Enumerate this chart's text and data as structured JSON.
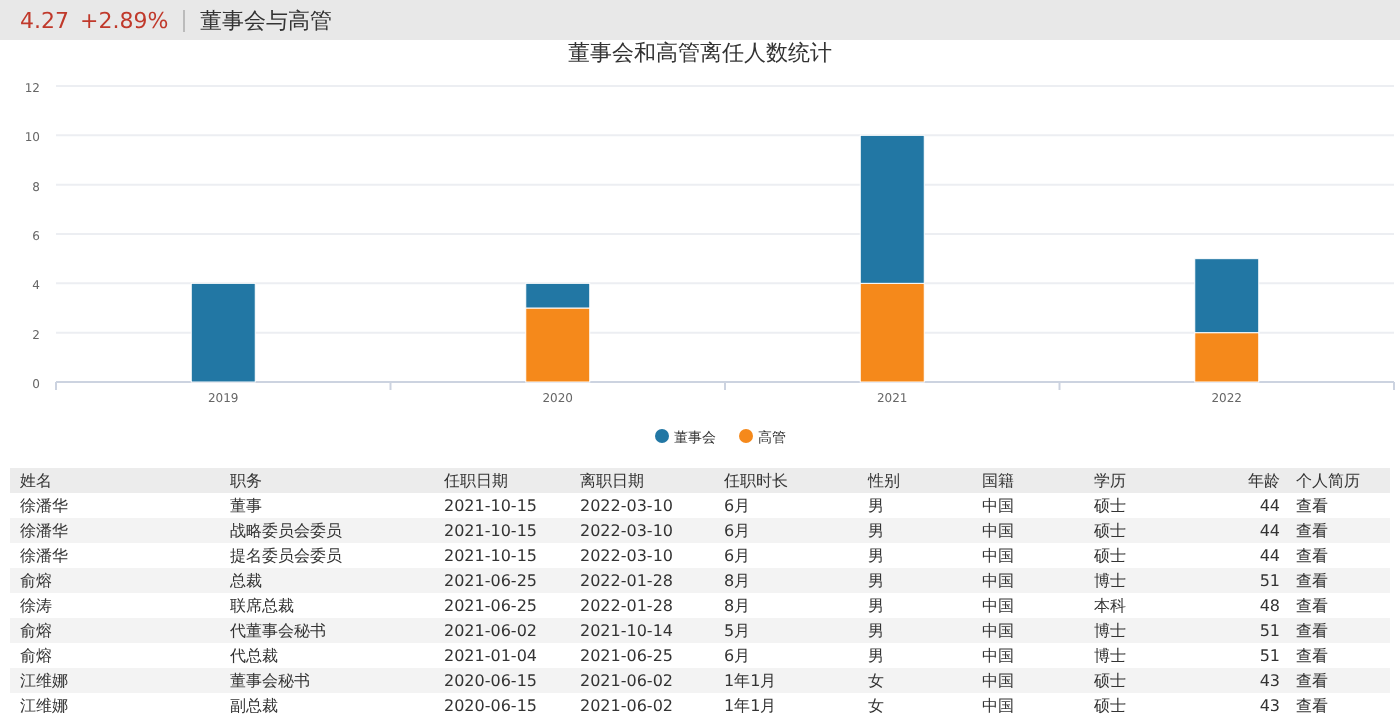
{
  "chart_data": [
    {
      "type": "bar",
      "title": "董事会和高管离任人数统计",
      "annotations": [
        "4.27",
        "+2.89%",
        "董事会与高管"
      ],
      "categories": [
        "2019",
        "2020",
        "2021",
        "2022"
      ],
      "stacked": true,
      "series": [
        {
          "name": "高管",
          "color": "#f5891b",
          "values": [
            0,
            3,
            4,
            2
          ]
        },
        {
          "name": "董事会",
          "color": "#2277a4",
          "values": [
            4,
            1,
            6,
            3
          ]
        }
      ],
      "ylim": [
        0,
        12
      ],
      "yticks": [
        0,
        2,
        4,
        6,
        8,
        10,
        12
      ],
      "grid": "y",
      "legend": "bottom"
    },
    {
      "type": "other",
      "categories": [
        "姓名",
        "职务",
        "任职日期",
        "离职日期",
        "任职时长",
        "性别",
        "国籍",
        "学历",
        "年龄",
        "个人简历"
      ],
      "cell_labels": [
        [
          "徐潘华",
          "董事",
          "2021-10-15",
          "2022-03-10",
          "6月",
          "男",
          "中国",
          "硕士",
          "44",
          "查看"
        ],
        [
          "徐潘华",
          "战略委员会委员",
          "2021-10-15",
          "2022-03-10",
          "6月",
          "男",
          "中国",
          "硕士",
          "44",
          "查看"
        ],
        [
          "徐潘华",
          "提名委员会委员",
          "2021-10-15",
          "2022-03-10",
          "6月",
          "男",
          "中国",
          "硕士",
          "44",
          "查看"
        ],
        [
          "俞熔",
          "总裁",
          "2021-06-25",
          "2022-01-28",
          "8月",
          "男",
          "中国",
          "博士",
          "51",
          "查看"
        ],
        [
          "徐涛",
          "联席总裁",
          "2021-06-25",
          "2022-01-28",
          "8月",
          "男",
          "中国",
          "本科",
          "48",
          "查看"
        ],
        [
          "俞熔",
          "代董事会秘书",
          "2021-06-02",
          "2021-10-14",
          "5月",
          "男",
          "中国",
          "博士",
          "51",
          "查看"
        ],
        [
          "俞熔",
          "代总裁",
          "2021-01-04",
          "2021-06-25",
          "6月",
          "男",
          "中国",
          "博士",
          "51",
          "查看"
        ],
        [
          "江维娜",
          "董事会秘书",
          "2020-06-15",
          "2021-06-02",
          "1年1月",
          "女",
          "中国",
          "硕士",
          "43",
          "查看"
        ],
        [
          "江维娜",
          "副总裁",
          "2020-06-15",
          "2021-06-02",
          "1年1月",
          "女",
          "中国",
          "硕士",
          "43",
          "查看"
        ]
      ]
    }
  ]
}
